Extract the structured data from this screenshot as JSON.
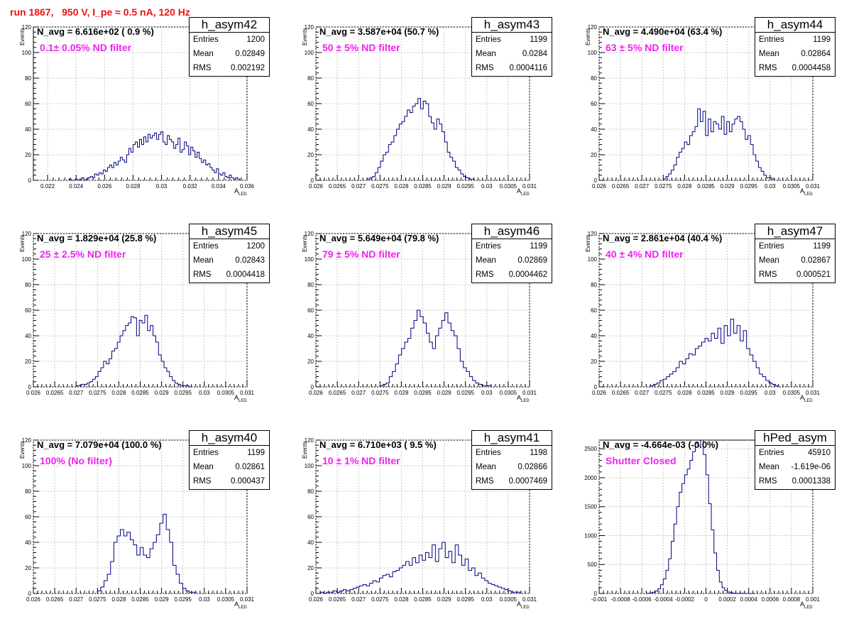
{
  "run_title": "run 1867,   950 V, I_pe ≈ 0.5 nA, 120 Hz",
  "colors": {
    "title": "#ee1111",
    "filter_text": "#ee22ee",
    "histogram": "#000080",
    "grid": "#c8c8c8"
  },
  "chart_data": [
    {
      "type": "bar",
      "hist_name": "h_asym42",
      "n_avg_label": "N_avg = 6.616e+02 ( 0.9 %)",
      "filter_label": "0.1± 0.05% ND filter",
      "stats": {
        "entries_label": "Entries",
        "entries": "1200",
        "mean_label": "Mean",
        "mean": "0.02849",
        "rms_label": "RMS",
        "rms": "0.002192"
      },
      "xlabel": "A",
      "xlabel_sub": "LED",
      "ylabel": "Events",
      "xlim": [
        0.021,
        0.036
      ],
      "ylim": [
        0,
        120
      ],
      "xticks": [
        0.022,
        0.024,
        0.026,
        0.028,
        0.03,
        0.032,
        0.034,
        0.036
      ],
      "xtick_labels": [
        "0.022",
        "0.024",
        "0.026",
        "0.028",
        "0.03",
        "0.032",
        "0.034",
        "0.036"
      ],
      "yticks": [
        0,
        20,
        40,
        60,
        80,
        100,
        120
      ],
      "ytick_labels": [
        "0",
        "20",
        "40",
        "60",
        "80",
        "100",
        "120"
      ],
      "bin_edges": [
        0.0235,
        0.0355
      ],
      "values": [
        1,
        0,
        0,
        1,
        0,
        1,
        2,
        0,
        1,
        2,
        3,
        2,
        5,
        4,
        6,
        5,
        8,
        7,
        10,
        12,
        10,
        14,
        12,
        15,
        18,
        16,
        14,
        20,
        25,
        22,
        28,
        30,
        26,
        32,
        28,
        34,
        30,
        36,
        33,
        35,
        37,
        32,
        36,
        38,
        30,
        28,
        35,
        32,
        30,
        25,
        28,
        33,
        22,
        24,
        30,
        27,
        20,
        26,
        23,
        18,
        22,
        17,
        14,
        16,
        12,
        13,
        10,
        8,
        6,
        9,
        5,
        4,
        6,
        3,
        2,
        4,
        2,
        1,
        2,
        1
      ]
    },
    {
      "type": "bar",
      "hist_name": "h_asym43",
      "n_avg_label": "N_avg = 3.587e+04 (50.7 %)",
      "filter_label": "50 ± 5% ND filter",
      "stats": {
        "entries_label": "Entries",
        "entries": "1199",
        "mean_label": "Mean",
        "mean": "0.0284",
        "rms_label": "RMS",
        "rms": "0.0004116"
      },
      "xlabel": "A",
      "xlabel_sub": "LED",
      "ylabel": "Events",
      "xlim": [
        0.026,
        0.031
      ],
      "ylim": [
        0,
        120
      ],
      "xticks": [
        0.026,
        0.0265,
        0.027,
        0.0275,
        0.028,
        0.0285,
        0.029,
        0.0295,
        0.03,
        0.0305,
        0.031
      ],
      "xtick_labels": [
        "0.026",
        "0.0265",
        "0.027",
        "0.0275",
        "0.028",
        "0.0285",
        "0.029",
        "0.0295",
        "0.03",
        "0.0305",
        "0.031"
      ],
      "yticks": [
        0,
        20,
        40,
        60,
        80,
        100,
        120
      ],
      "ytick_labels": [
        "0",
        "20",
        "40",
        "60",
        "80",
        "100",
        "120"
      ],
      "bin_edges": [
        0.0272,
        0.0297
      ],
      "values": [
        1,
        2,
        3,
        6,
        10,
        15,
        20,
        22,
        28,
        30,
        35,
        40,
        44,
        46,
        50,
        55,
        53,
        58,
        60,
        64,
        56,
        62,
        60,
        50,
        45,
        40,
        48,
        44,
        38,
        30,
        22,
        18,
        15,
        10,
        8,
        5,
        3,
        2,
        1,
        1
      ]
    },
    {
      "type": "bar",
      "hist_name": "h_asym44",
      "n_avg_label": "N_avg = 4.490e+04 (63.4 %)",
      "filter_label": "63 ± 5% ND filter",
      "stats": {
        "entries_label": "Entries",
        "entries": "1199",
        "mean_label": "Mean",
        "mean": "0.02864",
        "rms_label": "RMS",
        "rms": "0.0004458"
      },
      "xlabel": "A",
      "xlabel_sub": "LED",
      "ylabel": "Events",
      "xlim": [
        0.026,
        0.031
      ],
      "ylim": [
        0,
        120
      ],
      "xticks": [
        0.026,
        0.0265,
        0.027,
        0.0275,
        0.028,
        0.0285,
        0.029,
        0.0295,
        0.03,
        0.0305,
        0.031
      ],
      "xtick_labels": [
        "0.026",
        "0.0265",
        "0.027",
        "0.0275",
        "0.028",
        "0.0285",
        "0.029",
        "0.0295",
        "0.03",
        "0.0305",
        "0.031"
      ],
      "yticks": [
        0,
        20,
        40,
        60,
        80,
        100,
        120
      ],
      "ytick_labels": [
        "0",
        "20",
        "40",
        "60",
        "80",
        "100",
        "120"
      ],
      "bin_edges": [
        0.0275,
        0.0301
      ],
      "values": [
        1,
        3,
        5,
        8,
        12,
        18,
        22,
        25,
        30,
        28,
        35,
        38,
        42,
        56,
        46,
        54,
        35,
        48,
        38,
        46,
        44,
        40,
        50,
        36,
        46,
        38,
        44,
        48,
        50,
        46,
        40,
        32,
        35,
        28,
        20,
        15,
        10,
        7,
        4,
        2,
        2,
        1
      ]
    },
    {
      "type": "bar",
      "hist_name": "h_asym45",
      "n_avg_label": "N_avg = 1.829e+04 (25.8 %)",
      "filter_label": "25 ± 2.5% ND filter",
      "stats": {
        "entries_label": "Entries",
        "entries": "1200",
        "mean_label": "Mean",
        "mean": "0.02843",
        "rms_label": "RMS",
        "rms": "0.0004418"
      },
      "xlabel": "A",
      "xlabel_sub": "LED",
      "ylabel": "Events",
      "xlim": [
        0.026,
        0.031
      ],
      "ylim": [
        0,
        120
      ],
      "xticks": [
        0.026,
        0.0265,
        0.027,
        0.0275,
        0.028,
        0.0285,
        0.029,
        0.0295,
        0.03,
        0.0305,
        0.031
      ],
      "xtick_labels": [
        "0.026",
        "0.0265",
        "0.027",
        "0.0275",
        "0.028",
        "0.0285",
        "0.029",
        "0.0295",
        "0.03",
        "0.0305",
        "0.031"
      ],
      "yticks": [
        0,
        20,
        40,
        60,
        80,
        100,
        120
      ],
      "ytick_labels": [
        "0",
        "20",
        "40",
        "60",
        "80",
        "100",
        "120"
      ],
      "bin_edges": [
        0.027,
        0.0297
      ],
      "values": [
        1,
        1,
        2,
        2,
        3,
        4,
        6,
        8,
        12,
        15,
        20,
        18,
        22,
        28,
        30,
        35,
        40,
        44,
        48,
        50,
        55,
        54,
        40,
        52,
        50,
        56,
        44,
        48,
        40,
        35,
        25,
        20,
        15,
        12,
        8,
        5,
        3,
        2,
        1,
        1,
        1,
        0
      ]
    },
    {
      "type": "bar",
      "hist_name": "h_asym46",
      "n_avg_label": "N_avg = 5.649e+04 (79.8 %)",
      "filter_label": "79 ± 5% ND filter",
      "stats": {
        "entries_label": "Entries",
        "entries": "1199",
        "mean_label": "Mean",
        "mean": "0.02869",
        "rms_label": "RMS",
        "rms": "0.0004462"
      },
      "xlabel": "A",
      "xlabel_sub": "LED",
      "ylabel": "Events",
      "xlim": [
        0.026,
        0.031
      ],
      "ylim": [
        0,
        120
      ],
      "xticks": [
        0.026,
        0.0265,
        0.027,
        0.0275,
        0.028,
        0.0285,
        0.029,
        0.0295,
        0.03,
        0.0305,
        0.031
      ],
      "xtick_labels": [
        "0.026",
        "0.0265",
        "0.027",
        "0.0275",
        "0.028",
        "0.0285",
        "0.029",
        "0.0295",
        "0.03",
        "0.0305",
        "0.031"
      ],
      "yticks": [
        0,
        20,
        40,
        60,
        80,
        100,
        120
      ],
      "ytick_labels": [
        "0",
        "20",
        "40",
        "60",
        "80",
        "100",
        "120"
      ],
      "bin_edges": [
        0.0275,
        0.0301
      ],
      "values": [
        1,
        2,
        3,
        8,
        12,
        18,
        25,
        30,
        35,
        38,
        46,
        52,
        60,
        55,
        50,
        42,
        35,
        30,
        40,
        46,
        52,
        58,
        50,
        44,
        40,
        30,
        20,
        15,
        12,
        8,
        5,
        3,
        2,
        1,
        1,
        1
      ]
    },
    {
      "type": "bar",
      "hist_name": "h_asym47",
      "n_avg_label": "N_avg = 2.861e+04 (40.4 %)",
      "filter_label": "40 ± 4% ND filter",
      "stats": {
        "entries_label": "Entries",
        "entries": "1199",
        "mean_label": "Mean",
        "mean": "0.02867",
        "rms_label": "RMS",
        "rms": "0.000521"
      },
      "xlabel": "A",
      "xlabel_sub": "LED",
      "ylabel": "Events",
      "xlim": [
        0.026,
        0.031
      ],
      "ylim": [
        0,
        120
      ],
      "xticks": [
        0.026,
        0.0265,
        0.027,
        0.0275,
        0.028,
        0.0285,
        0.029,
        0.0295,
        0.03,
        0.0305,
        0.031
      ],
      "xtick_labels": [
        "0.026",
        "0.0265",
        "0.027",
        "0.0275",
        "0.028",
        "0.0285",
        "0.029",
        "0.0295",
        "0.03",
        "0.0305",
        "0.031"
      ],
      "yticks": [
        0,
        20,
        40,
        60,
        80,
        100,
        120
      ],
      "ytick_labels": [
        "0",
        "20",
        "40",
        "60",
        "80",
        "100",
        "120"
      ],
      "bin_edges": [
        0.0272,
        0.0302
      ],
      "values": [
        1,
        2,
        3,
        5,
        6,
        8,
        10,
        12,
        15,
        20,
        18,
        22,
        26,
        25,
        30,
        32,
        35,
        38,
        36,
        42,
        38,
        46,
        34,
        48,
        40,
        53,
        42,
        48,
        36,
        44,
        30,
        25,
        20,
        15,
        10,
        8,
        5,
        3,
        2,
        1
      ]
    },
    {
      "type": "bar",
      "hist_name": "h_asym40",
      "n_avg_label": "N_avg = 7.079e+04 (100.0 %)",
      "filter_label": "100% (No filter)",
      "stats": {
        "entries_label": "Entries",
        "entries": "1199",
        "mean_label": "Mean",
        "mean": "0.02861",
        "rms_label": "RMS",
        "rms": "0.000437"
      },
      "xlabel": "A",
      "xlabel_sub": "LED",
      "ylabel": "Events",
      "xlim": [
        0.026,
        0.031
      ],
      "ylim": [
        0,
        120
      ],
      "xticks": [
        0.026,
        0.0265,
        0.027,
        0.0275,
        0.028,
        0.0285,
        0.029,
        0.0295,
        0.03,
        0.0305,
        0.031
      ],
      "xtick_labels": [
        "0.026",
        "0.0265",
        "0.027",
        "0.0275",
        "0.028",
        "0.0285",
        "0.029",
        "0.0295",
        "0.03",
        "0.0305",
        "0.031"
      ],
      "yticks": [
        0,
        20,
        40,
        60,
        80,
        100,
        120
      ],
      "ytick_labels": [
        "0",
        "20",
        "40",
        "60",
        "80",
        "100",
        "120"
      ],
      "bin_edges": [
        0.0275,
        0.0298
      ],
      "values": [
        2,
        5,
        10,
        15,
        25,
        40,
        45,
        50,
        45,
        48,
        42,
        38,
        30,
        36,
        30,
        28,
        35,
        40,
        46,
        55,
        62,
        50,
        40,
        22,
        15,
        8,
        4,
        2,
        1,
        1
      ]
    },
    {
      "type": "bar",
      "hist_name": "h_asym41",
      "n_avg_label": "N_avg = 6.710e+03 ( 9.5 %)",
      "filter_label": "10 ± 1% ND filter",
      "stats": {
        "entries_label": "Entries",
        "entries": "1198",
        "mean_label": "Mean",
        "mean": "0.02866",
        "rms_label": "RMS",
        "rms": "0.0007469"
      },
      "xlabel": "A",
      "xlabel_sub": "LED",
      "ylabel": "Events",
      "xlim": [
        0.026,
        0.031
      ],
      "ylim": [
        0,
        120
      ],
      "xticks": [
        0.026,
        0.0265,
        0.027,
        0.0275,
        0.028,
        0.0285,
        0.029,
        0.0295,
        0.03,
        0.0305,
        0.031
      ],
      "xtick_labels": [
        "0.026",
        "0.0265",
        "0.027",
        "0.0275",
        "0.028",
        "0.0285",
        "0.029",
        "0.0295",
        "0.03",
        "0.0305",
        "0.031"
      ],
      "yticks": [
        0,
        20,
        40,
        60,
        80,
        100,
        120
      ],
      "ytick_labels": [
        "0",
        "20",
        "40",
        "60",
        "80",
        "100",
        "120"
      ],
      "bin_edges": [
        0.0261,
        0.0308
      ],
      "values": [
        1,
        0,
        1,
        1,
        2,
        1,
        2,
        3,
        2,
        3,
        4,
        5,
        6,
        7,
        6,
        8,
        10,
        9,
        12,
        14,
        15,
        13,
        17,
        18,
        20,
        22,
        25,
        22,
        28,
        24,
        30,
        26,
        32,
        28,
        38,
        25,
        35,
        40,
        28,
        33,
        24,
        38,
        30,
        22,
        27,
        18,
        20,
        14,
        16,
        12,
        10,
        8,
        7,
        6,
        5,
        4,
        3,
        2,
        1,
        1,
        1
      ]
    },
    {
      "type": "bar",
      "hist_name": "hPed_asym",
      "n_avg_label": "N_avg = -4.664e-03 (-0.0%)",
      "filter_label": "Shutter Closed",
      "stats": {
        "entries_label": "Entries",
        "entries": "45910",
        "mean_label": "Mean",
        "mean": "-1.619e-06",
        "rms_label": "RMS",
        "rms": "0.0001338"
      },
      "xlabel": "A",
      "xlabel_sub": "LED",
      "ylabel": "",
      "xlim": [
        -0.001,
        0.001
      ],
      "ylim": [
        0,
        2650
      ],
      "xticks": [
        -0.001,
        -0.0008,
        -0.0006,
        -0.0004,
        -0.0002,
        0,
        0.0002,
        0.0004,
        0.0006,
        0.0008,
        0.001
      ],
      "xtick_labels": [
        "-0.001",
        "-0.0008",
        "-0.0006",
        "-0.0004",
        "-0.0002",
        "0",
        "0.0002",
        "0.0004",
        "0.0006",
        "0.0008",
        "0.001"
      ],
      "yticks": [
        0,
        500,
        1000,
        1500,
        2000,
        2500
      ],
      "ytick_labels": [
        "0",
        "500",
        "1000",
        "1500",
        "2000",
        "2500"
      ],
      "bin_edges": [
        -0.00055,
        0.00045
      ],
      "values": [
        3,
        8,
        20,
        40,
        80,
        150,
        250,
        400,
        600,
        900,
        1200,
        1500,
        1750,
        1900,
        2050,
        2150,
        2300,
        2450,
        2600,
        2550,
        2650,
        2400,
        2050,
        1550,
        1100,
        700,
        400,
        200,
        100,
        50,
        25,
        12,
        5,
        2,
        1,
        1,
        0,
        0,
        0,
        0
      ]
    }
  ]
}
